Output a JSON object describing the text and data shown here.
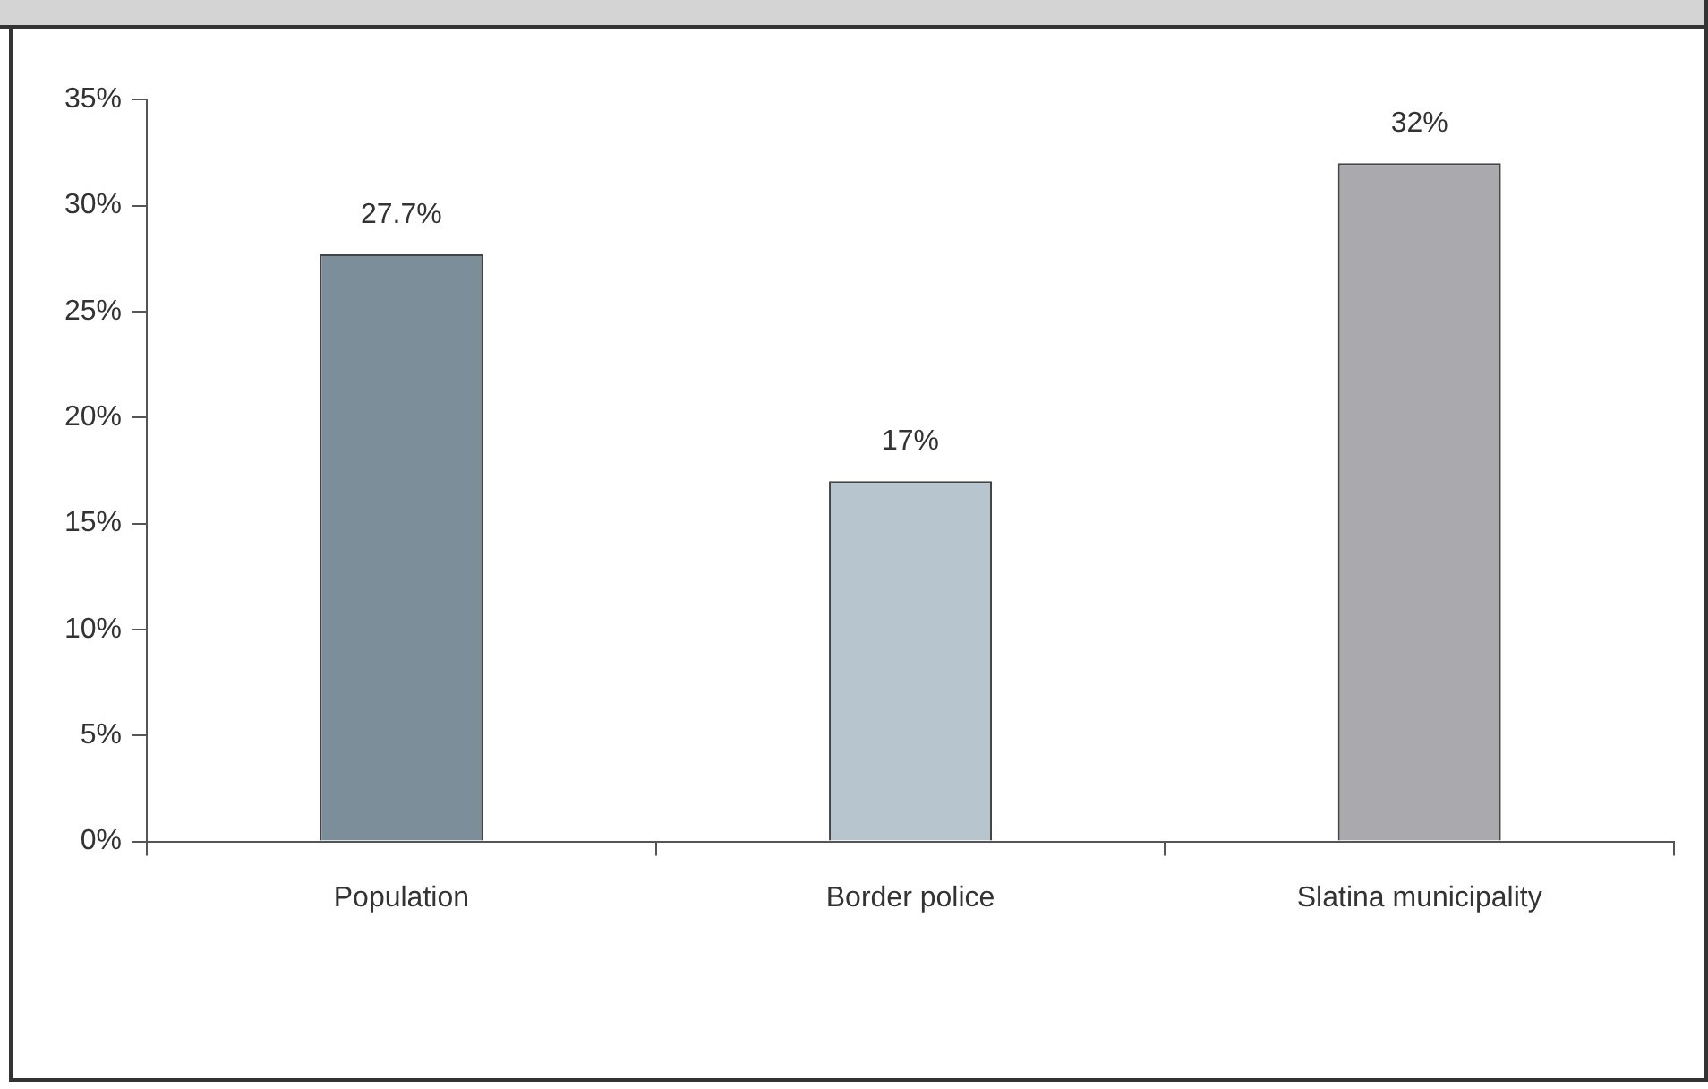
{
  "chart_data": {
    "type": "bar",
    "categories": [
      "Population",
      "Border police",
      "Slatina municipality"
    ],
    "values": [
      27.7,
      17,
      32
    ],
    "colors": [
      "#7d8e9b",
      "#b7c5cf",
      "#a9a9ae"
    ],
    "value_labels": [
      "27.7%",
      "17%",
      "32%"
    ],
    "ylim": [
      0,
      35
    ],
    "yticks": [
      {
        "value": 0,
        "label": "0%"
      },
      {
        "value": 5,
        "label": "5%"
      },
      {
        "value": 10,
        "label": "10%"
      },
      {
        "value": 15,
        "label": "15%"
      },
      {
        "value": 20,
        "label": "20%"
      },
      {
        "value": 25,
        "label": "25%"
      },
      {
        "value": 30,
        "label": "30%"
      },
      {
        "value": 35,
        "label": "35%"
      }
    ],
    "grid": false,
    "legend": false
  }
}
